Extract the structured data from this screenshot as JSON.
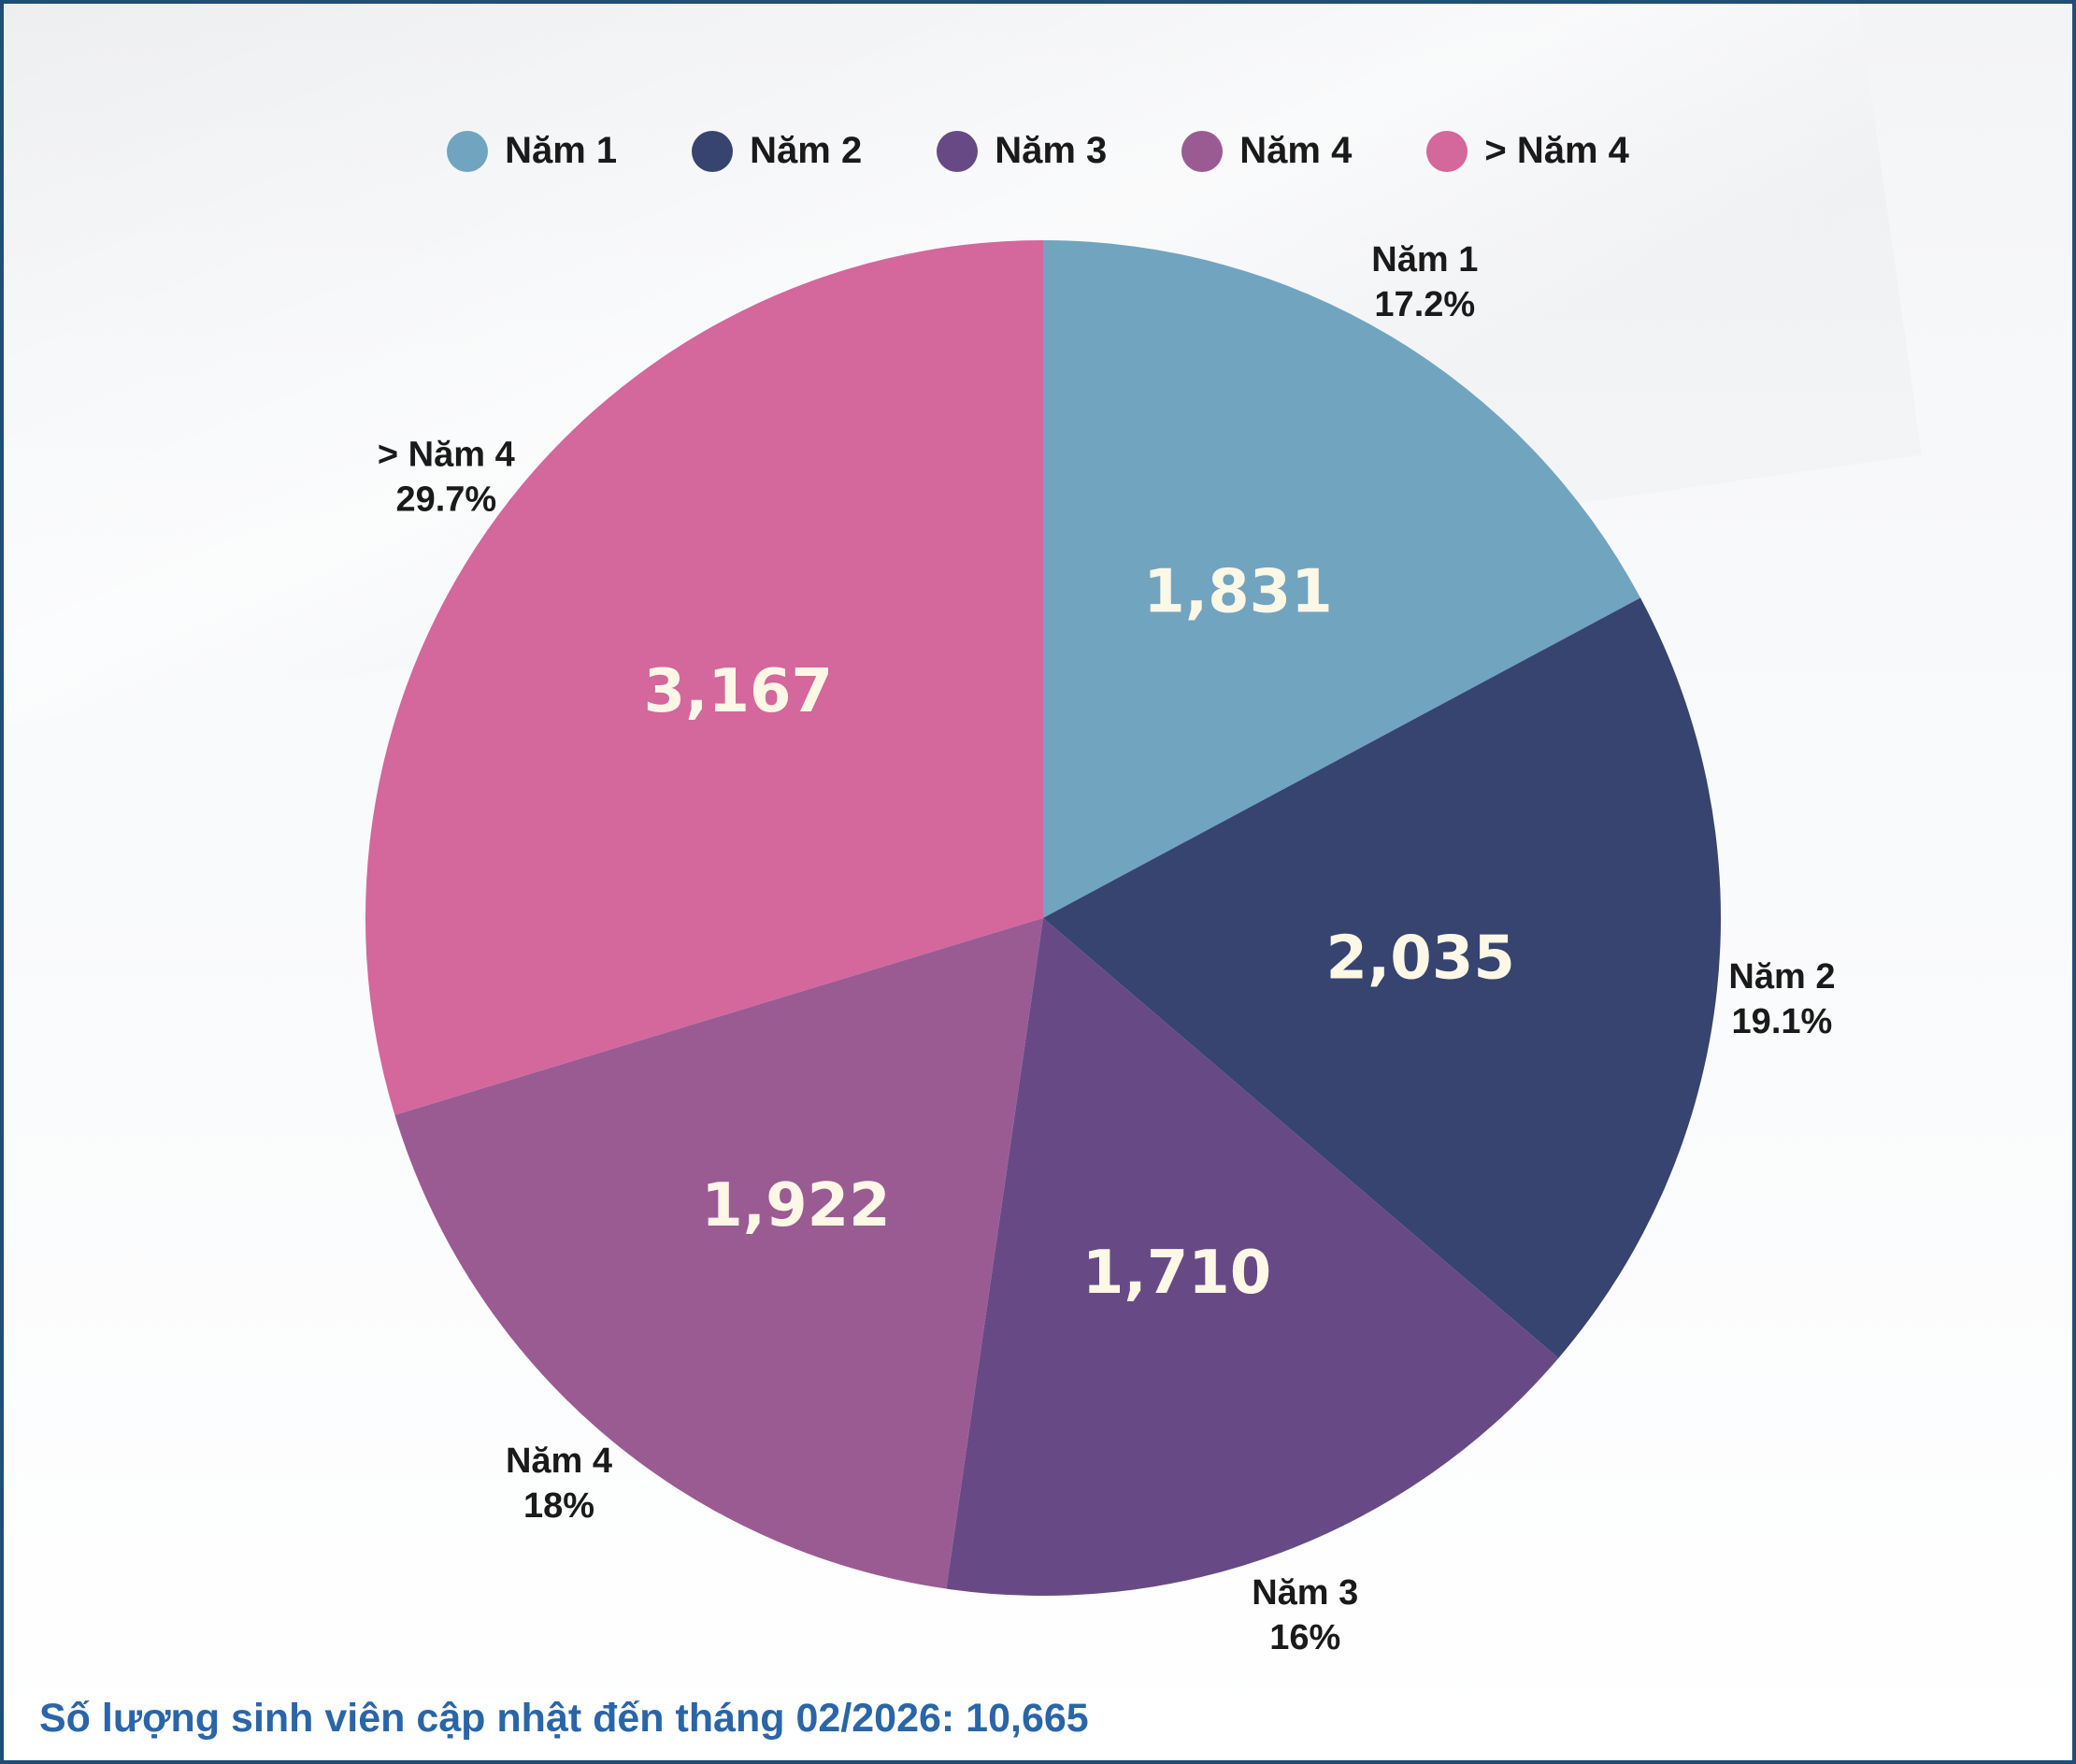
{
  "chart_data": {
    "type": "pie",
    "categories": [
      "Năm 1",
      "Năm 2",
      "Năm 3",
      "Năm 4",
      "> Năm 4"
    ],
    "values": [
      1831,
      2035,
      1710,
      1922,
      3167
    ],
    "value_labels": [
      "1,831",
      "2,035",
      "1,710",
      "1,922",
      "3,167"
    ],
    "percent_labels": [
      "17.2%",
      "19.1%",
      "16%",
      "18%",
      "29.7%"
    ],
    "colors": [
      "#71a4bf",
      "#36446f",
      "#674a85",
      "#9a5b93",
      "#d4679b"
    ],
    "start_angle_deg": 0,
    "direction": "clockwise",
    "legend_position": "top-center"
  },
  "legend": {
    "items": [
      {
        "label": "Năm 1",
        "color": "#71a4bf"
      },
      {
        "label": "Năm 2",
        "color": "#36446f"
      },
      {
        "label": "Năm 3",
        "color": "#674a85"
      },
      {
        "label": "Năm 4",
        "color": "#9a5b93"
      },
      {
        "label": "> Năm 4",
        "color": "#d4679b"
      }
    ]
  },
  "footer": {
    "text": "Số lượng sinh viên cập nhật đến tháng 02/2026: 10,665"
  }
}
